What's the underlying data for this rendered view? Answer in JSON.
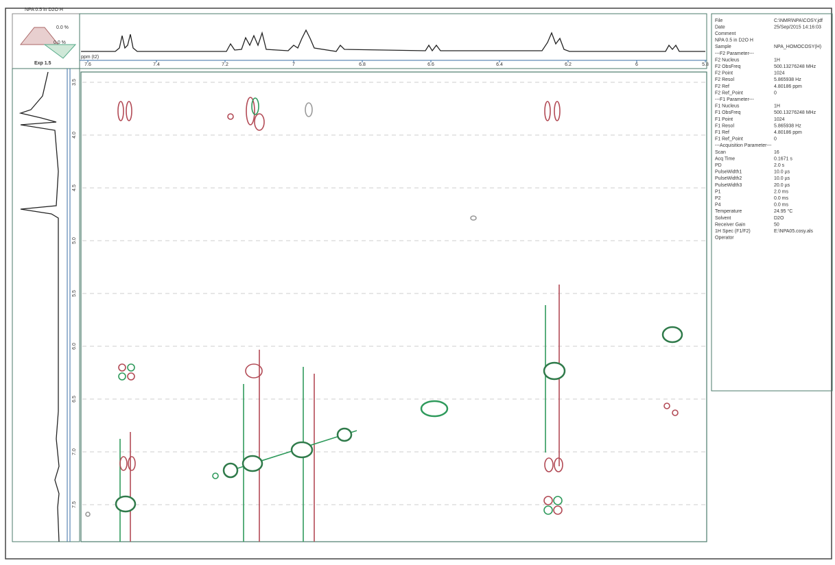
{
  "header": {
    "title": "NPA 0.5 in D2O H"
  },
  "inset": {
    "top_label": "0.0 %",
    "mid_label": "0.0 %",
    "exp_label": "Exp 1.5"
  },
  "x_axis": {
    "unit": "ppm (t2)",
    "ticks": [
      "7.6",
      "7.4",
      "7.2",
      "7",
      "6.8",
      "6.6",
      "6.4",
      "6.2",
      "6",
      "5.8"
    ]
  },
  "y_axis": {
    "ticks": [
      "3.5",
      "4.0",
      "4.5",
      "5.0",
      "5.5",
      "6.0",
      "6.5",
      "7.0",
      "7.5"
    ]
  },
  "parameters": [
    [
      "File",
      "C:\\NMR\\NPA\\COSY.jdf"
    ],
    [
      "Date",
      "25/Sep/2015 14:16:03"
    ],
    [
      "Comment",
      ""
    ],
    [
      "NPA 0.5 in D2O H",
      ""
    ],
    [
      "Sample",
      "NPA_HOMOCOSY(H)"
    ],
    [
      "---F2 Parameter---",
      ""
    ],
    [
      "F2 Nucleus",
      "1H"
    ],
    [
      "F2 ObsFreq",
      "500.13276248 MHz"
    ],
    [
      "F2 Point",
      "1024"
    ],
    [
      "F2 Resol",
      "5.865938 Hz"
    ],
    [
      "F2 Ref",
      "4.80186 ppm"
    ],
    [
      "F2 Ref_Point",
      "0"
    ],
    [
      "---F1 Parameter---",
      ""
    ],
    [
      "F1 Nucleus",
      "1H"
    ],
    [
      "F1 ObsFreq",
      "500.13276248 MHz"
    ],
    [
      "F1 Point",
      "1024"
    ],
    [
      "F1 Resol",
      "5.865938 Hz"
    ],
    [
      "F1 Ref",
      "4.80186 ppm"
    ],
    [
      "F1 Ref_Point",
      "0"
    ],
    [
      "---Acquisition Parameter---",
      ""
    ],
    [
      "Scan",
      "16"
    ],
    [
      "Acq Time",
      "0.1671 s"
    ],
    [
      "PD",
      "2.0 s"
    ],
    [
      "PulseWidth1",
      "10.0 µs"
    ],
    [
      "PulseWidth2",
      "10.0 µs"
    ],
    [
      "PulseWidth3",
      "20.0 µs"
    ],
    [
      "P1",
      "2.0 ms"
    ],
    [
      "P2",
      "0.0 ms"
    ],
    [
      "P4",
      "0.0 ms"
    ],
    [
      "Temperature",
      "24.95 °C"
    ],
    [
      "Solvent",
      "D2O"
    ],
    [
      "Receiver Gain",
      "50"
    ],
    [
      "1H Spec (F1/F2)",
      "E:\\NPA05.cosy.als"
    ],
    [
      "Operator",
      ""
    ]
  ]
}
